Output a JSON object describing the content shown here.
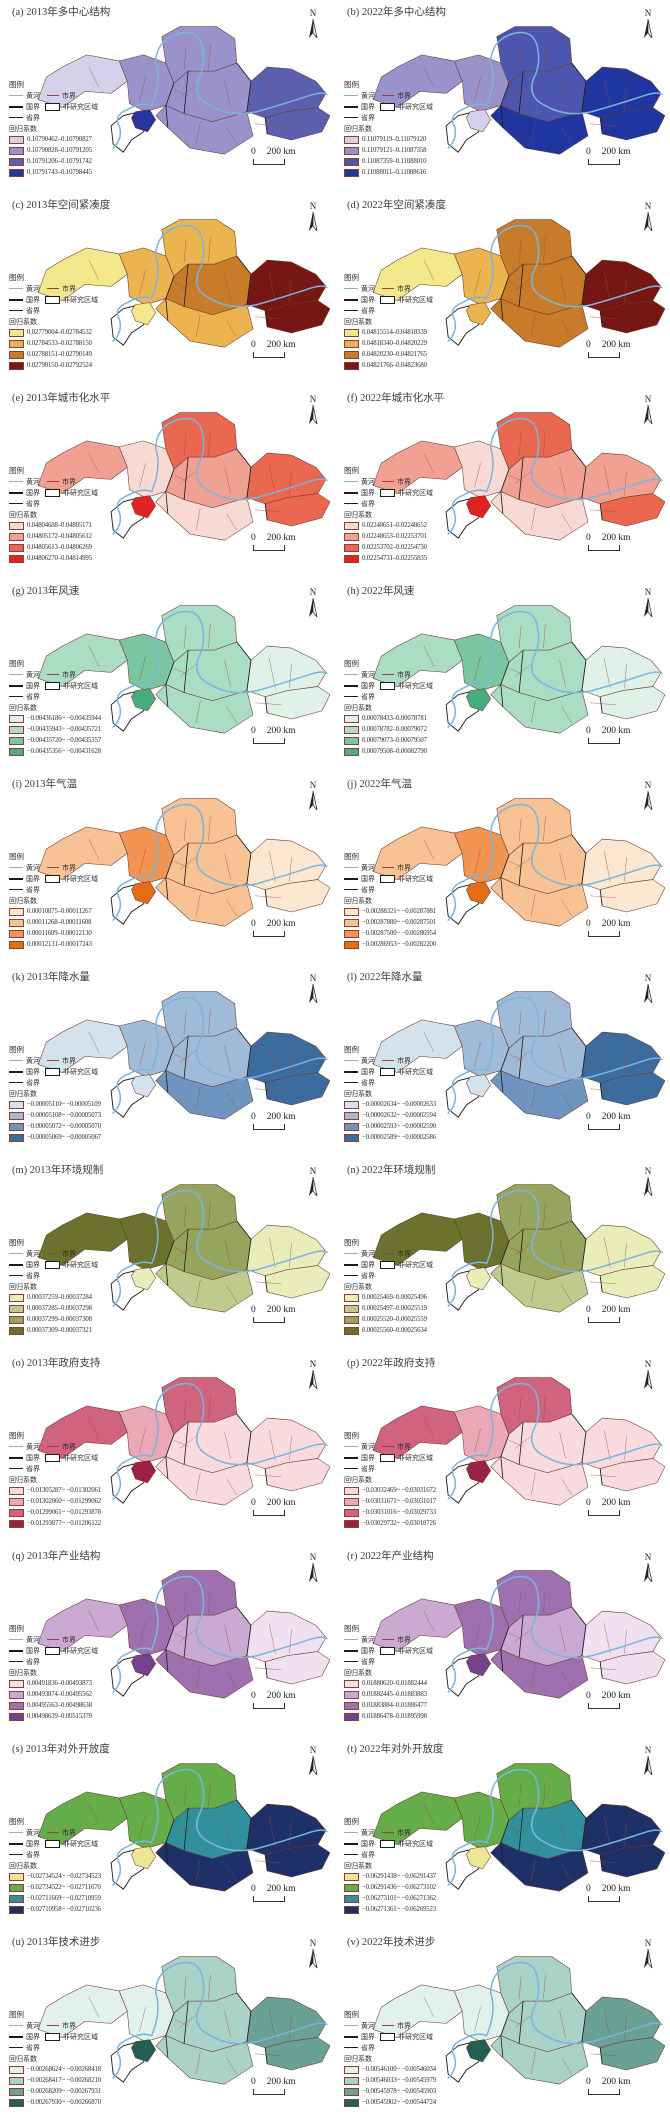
{
  "shared": {
    "north_label": "N",
    "scale": {
      "zero": "0",
      "max_label": "200 km"
    },
    "legend": {
      "title": "图例",
      "river": "黄河",
      "city_boundary": "市界",
      "national_boundary": "国界",
      "non_study_area": "非研究区域",
      "province_boundary": "省界",
      "coefficient": "回归系数"
    },
    "colors": {
      "river": "#7ab5de",
      "city_boundary_line": "#9a4038",
      "national_boundary_line": "#1c1c1c",
      "province_boundary_line": "#1c1c1c",
      "district_line": "#9a4a3c",
      "non_study_fill": "#ffffff"
    }
  },
  "panels": [
    {
      "id": "a",
      "title": "(a) 2013年多中心结构",
      "palette": [
        "#d5d1ea",
        "#9a92cb",
        "#5a5fae",
        "#28359c"
      ],
      "classes": [
        "0.10790462–0.10790827",
        "0.10790828–0.10791205",
        "0.10791206–0.10791742",
        "0.10791743–0.10798445"
      ],
      "regions": [
        0,
        1,
        1,
        1,
        1,
        2,
        2,
        3
      ]
    },
    {
      "id": "b",
      "title": "(b) 2022年多中心结构",
      "palette": [
        "#d5d1ea",
        "#9a92cb",
        "#4d56ae",
        "#1f35a0"
      ],
      "classes": [
        "0.11079119–0.11079120",
        "0.11079121–0.11087358",
        "0.11087359–0.11088010",
        "0.11088011–0.11088616"
      ],
      "regions": [
        1,
        1,
        2,
        2,
        3,
        3,
        3,
        0
      ]
    },
    {
      "id": "c",
      "title": "(c) 2013年空间紧凑度",
      "palette": [
        "#f3e98c",
        "#ecb44e",
        "#c87b28",
        "#771714"
      ],
      "classes": [
        "0.02779004–0.02784532",
        "0.02784533–0.02788150",
        "0.02788151–0.02790149",
        "0.02790150–0.02792524"
      ],
      "regions": [
        0,
        1,
        1,
        2,
        1,
        3,
        3,
        0
      ]
    },
    {
      "id": "d",
      "title": "(d) 2022年空间紧凑度",
      "palette": [
        "#f3e98c",
        "#ecb44e",
        "#c87b28",
        "#771714"
      ],
      "classes": [
        "0.04815514–0.04818339",
        "0.04818340–0.04820229",
        "0.04820230–0.04821765",
        "0.04821766–0.04823680"
      ],
      "regions": [
        0,
        1,
        2,
        2,
        2,
        3,
        3,
        1
      ]
    },
    {
      "id": "e",
      "title": "(e) 2013年城市化水平",
      "palette": [
        "#f9d9d4",
        "#f0a193",
        "#ea6750",
        "#e02222"
      ],
      "classes": [
        "0.04804688–0.04805171",
        "0.04805172–0.04805612",
        "0.04805613–0.04806269",
        "0.04806270–0.04814995"
      ],
      "regions": [
        1,
        0,
        2,
        1,
        0,
        2,
        2,
        3
      ]
    },
    {
      "id": "f",
      "title": "(f) 2022年城市化水平",
      "palette": [
        "#f9d9d4",
        "#f0a193",
        "#ea6750",
        "#e02222"
      ],
      "classes": [
        "0.02248651–0.02248652",
        "0.02248653–0.02253701",
        "0.02253702–0.02254730",
        "0.02254731–0.02255835"
      ],
      "regions": [
        1,
        0,
        2,
        1,
        0,
        1,
        2,
        3
      ]
    },
    {
      "id": "g",
      "title": "(g) 2013年风速",
      "palette": [
        "#dff1e9",
        "#abdcc4",
        "#79c6a0",
        "#47ad7c"
      ],
      "classes": [
        "−0.00436186~ −0.00435944",
        "−0.00435943~ −0.00435721",
        "−0.00435720~ −0.00435357",
        "−0.00435356~ −0.00431628"
      ],
      "regions": [
        1,
        2,
        1,
        1,
        1,
        0,
        0,
        3
      ]
    },
    {
      "id": "h",
      "title": "(h) 2022年风速",
      "palette": [
        "#dff1e9",
        "#abdcc4",
        "#79c6a0",
        "#47ad7c"
      ],
      "classes": [
        "0.00078433–0.00078781",
        "0.00078782–0.00079072",
        "0.00079073–0.00079507",
        "0.00079508–0.00082790"
      ],
      "regions": [
        1,
        2,
        1,
        1,
        1,
        0,
        0,
        3
      ]
    },
    {
      "id": "i",
      "title": "(i) 2013年气温",
      "palette": [
        "#fce7d0",
        "#f8c294",
        "#f29553",
        "#e56b15"
      ],
      "classes": [
        "0.00010875–0.00011267",
        "0.00011268–0.00011608",
        "0.00011609–0.00012130",
        "0.00012131–0.00017243"
      ],
      "regions": [
        1,
        2,
        1,
        1,
        1,
        0,
        0,
        3
      ]
    },
    {
      "id": "j",
      "title": "(j) 2022年气温",
      "palette": [
        "#fce7d0",
        "#f8c294",
        "#f29553",
        "#e56b15"
      ],
      "classes": [
        "−0.00288321~ −0.00287881",
        "−0.00287880~ −0.00287501",
        "−0.00287500~ −0.00286954",
        "−0.00286953~ −0.00282200"
      ],
      "regions": [
        1,
        2,
        1,
        1,
        1,
        0,
        0,
        3
      ]
    },
    {
      "id": "k",
      "title": "(k) 2013年降水量",
      "palette": [
        "#d4e2ee",
        "#9fbbd7",
        "#6e95bf",
        "#3c6b9e"
      ],
      "classes": [
        "−0.00005110~ −0.00005109",
        "−0.00005108~ −0.00005073",
        "−0.00005072~ −0.00005070",
        "−0.00005069~ −0.00005067"
      ],
      "regions": [
        0,
        1,
        1,
        1,
        2,
        3,
        3,
        0
      ]
    },
    {
      "id": "l",
      "title": "(l) 2022年降水量",
      "palette": [
        "#d4e2ee",
        "#9fbbd7",
        "#6e95bf",
        "#3c6b9e"
      ],
      "classes": [
        "−0.00002634~ −0.00002633",
        "−0.00002632~ −0.00002594",
        "−0.00002593~ −0.00002590",
        "−0.00002589~ −0.00002586"
      ],
      "regions": [
        0,
        1,
        1,
        1,
        2,
        3,
        3,
        0
      ]
    },
    {
      "id": "m",
      "title": "(m) 2013年环境规制",
      "palette": [
        "#e8edba",
        "#beca8e",
        "#96a45e",
        "#6a722e"
      ],
      "classes": [
        "0.00037259–0.00037284",
        "0.00037285–0.00037298",
        "0.00037299–0.00037308",
        "0.00037309–0.00037321"
      ],
      "regions": [
        3,
        3,
        2,
        2,
        1,
        0,
        0,
        0
      ]
    },
    {
      "id": "n",
      "title": "(n) 2022年环境规制",
      "palette": [
        "#e8edba",
        "#beca8e",
        "#96a45e",
        "#6a722e"
      ],
      "classes": [
        "0.00025469–0.00025496",
        "0.00025497–0.00025519",
        "0.00025520–0.00025559",
        "0.00025560–0.00025634"
      ],
      "regions": [
        3,
        3,
        2,
        2,
        1,
        0,
        0,
        0
      ]
    },
    {
      "id": "o",
      "title": "(o) 2013年政府支持",
      "palette": [
        "#f9dbdf",
        "#eba8b6",
        "#d0637d",
        "#9b2242"
      ],
      "classes": [
        "−0.01305287~ −0.01302061",
        "−0.01302060~ −0.01299062",
        "−0.01299061~ −0.01293878",
        "−0.01293877~ −0.01206122"
      ],
      "regions": [
        2,
        1,
        2,
        0,
        0,
        0,
        0,
        3
      ]
    },
    {
      "id": "p",
      "title": "(p) 2022年政府支持",
      "palette": [
        "#f9dbdf",
        "#eba8b6",
        "#d0637d",
        "#9b2242"
      ],
      "classes": [
        "−0.03032469~ −0.03031672",
        "−0.03031671~ −0.03031017",
        "−0.03031016~ −0.03029733",
        "−0.03029732~ −0.03018726"
      ],
      "regions": [
        2,
        1,
        2,
        0,
        0,
        0,
        0,
        3
      ]
    },
    {
      "id": "q",
      "title": "(q) 2013年产业结构",
      "palette": [
        "#f1e0ef",
        "#caaad2",
        "#9f70b0",
        "#72438c"
      ],
      "classes": [
        "0.00491836–0.00493873",
        "0.00493874–0.00495562",
        "0.00495563–0.00498638",
        "0.00498639–0.00515379"
      ],
      "regions": [
        1,
        2,
        2,
        1,
        2,
        0,
        0,
        3
      ]
    },
    {
      "id": "r",
      "title": "(r) 2022年产业结构",
      "palette": [
        "#f1e0ef",
        "#caaad2",
        "#9f70b0",
        "#72438c"
      ],
      "classes": [
        "0.01880620–0.01882444",
        "0.01882445–0.01883883",
        "0.01883884–0.01886477",
        "0.01886478–0.01895998"
      ],
      "regions": [
        1,
        2,
        2,
        1,
        2,
        0,
        0,
        3
      ]
    },
    {
      "id": "s",
      "title": "(s) 2013年对外开放度",
      "palette": [
        "#f0e595",
        "#65ad48",
        "#30919d",
        "#1e3068"
      ],
      "classes": [
        "−0.02734524~ −0.02734523",
        "−0.02734522~ −0.02711670",
        "−0.02711669~ −0.02710959",
        "−0.02710958~ −0.02710236"
      ],
      "regions": [
        1,
        1,
        1,
        2,
        3,
        3,
        3,
        0
      ]
    },
    {
      "id": "t",
      "title": "(t) 2022年对外开放度",
      "palette": [
        "#f0e595",
        "#65ad48",
        "#30919d",
        "#1e3068"
      ],
      "classes": [
        "−0.06291438~ −0.06291437",
        "−0.06291436~ −0.06273102",
        "−0.06273101~ −0.06271362",
        "−0.06271361~ −0.06269523"
      ],
      "regions": [
        1,
        1,
        1,
        2,
        3,
        3,
        3,
        0
      ]
    },
    {
      "id": "u",
      "title": "(u) 2013年技术进步",
      "palette": [
        "#e1f2ed",
        "#aad2c7",
        "#6aa195",
        "#226055"
      ],
      "classes": [
        "−0.00268624~ −0.00268418",
        "−0.00268417~ −0.00268210",
        "−0.00268209~ −0.00267931",
        "−0.00267930~ −0.00266870"
      ],
      "regions": [
        0,
        0,
        1,
        1,
        1,
        2,
        2,
        3
      ]
    },
    {
      "id": "v",
      "title": "(v) 2022年技术进步",
      "palette": [
        "#e1f2ed",
        "#aad2c7",
        "#6aa195",
        "#226055"
      ],
      "classes": [
        "−0.00546100~ −0.00546034",
        "−0.00546033~ −0.00545979",
        "−0.00545978~ −0.00545903",
        "−0.00545902~ −0.00544724"
      ],
      "regions": [
        0,
        0,
        1,
        1,
        1,
        2,
        2,
        3
      ]
    }
  ]
}
